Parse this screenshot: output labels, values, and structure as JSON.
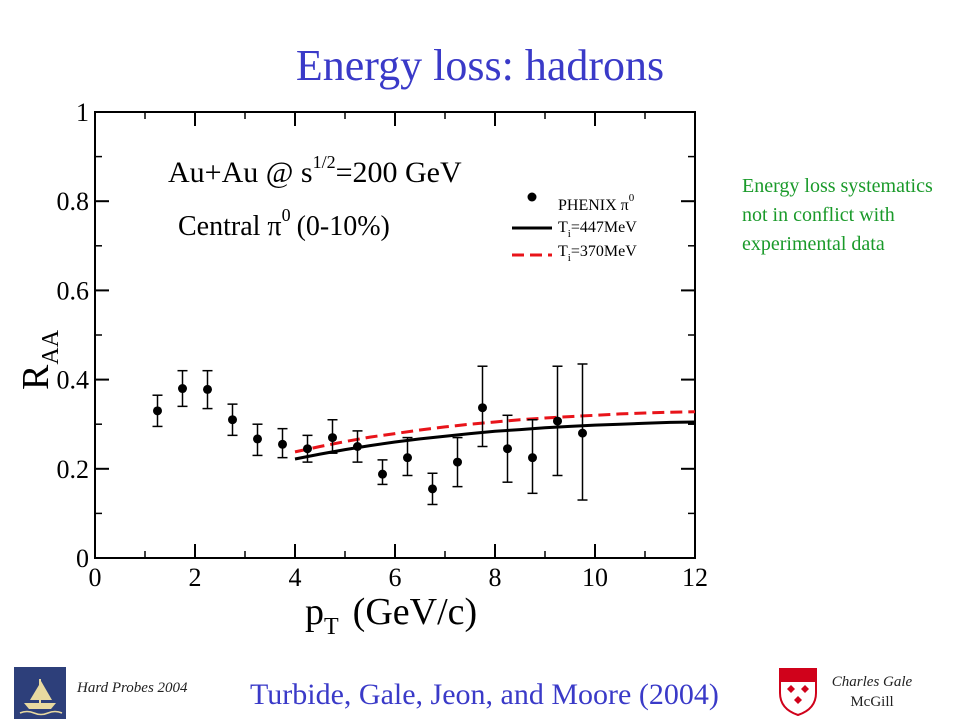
{
  "slide": {
    "title": "Energy loss: hadrons",
    "side_note": "Energy loss systematics not in conflict with experimental data",
    "footer_left": "Hard Probes 2004",
    "citation": "Turbide, Gale, Jeon, and Moore (2004)",
    "author": "Charles Gale",
    "institution": "McGill"
  },
  "colors": {
    "title": "#3a3ac8",
    "note": "#1a9a2a",
    "dashed_curve": "#e8141a",
    "solid_curve": "#000000",
    "points": "#000000"
  },
  "chart_data": {
    "type": "scatter",
    "xlabel_main": "p",
    "xlabel_sub": "T",
    "xlabel_rest": "(GeV/c)",
    "ylabel_main": "R",
    "ylabel_sub": "AA",
    "xlim": [
      0,
      12
    ],
    "ylim": [
      0,
      1
    ],
    "x_ticks": [
      "0",
      "2",
      "4",
      "6",
      "8",
      "10",
      "12"
    ],
    "y_ticks": [
      "0",
      "0.2",
      "0.4",
      "0.6",
      "0.8",
      "1"
    ],
    "annotation_line1_a": "Au+Au @  s",
    "annotation_line1_sup": "1/2",
    "annotation_line1_b": "=200 GeV",
    "annotation_line2_a": "Central  π",
    "annotation_line2_sup": "0",
    "annotation_line2_b": "(0-10%)",
    "legend_placement": "top-right",
    "legend": [
      {
        "label_main": "PHENIX π",
        "label_sup": "0",
        "label_sub": "",
        "label_rest": "",
        "style": "points"
      },
      {
        "label_main": "T",
        "label_sup": "",
        "label_sub": "i",
        "label_rest": "=447MeV",
        "style": "solid"
      },
      {
        "label_main": "T",
        "label_sup": "",
        "label_sub": "i",
        "label_rest": "=370MeV",
        "style": "dashed"
      }
    ],
    "series": [
      {
        "name": "PHENIX π0",
        "style": "points",
        "x": [
          1.25,
          1.75,
          2.25,
          2.75,
          3.25,
          3.75,
          4.25,
          4.75,
          5.25,
          5.75,
          6.25,
          6.75,
          7.25,
          7.75,
          8.25,
          8.75,
          9.25,
          9.75
        ],
        "y": [
          0.33,
          0.38,
          0.378,
          0.31,
          0.267,
          0.255,
          0.245,
          0.27,
          0.25,
          0.188,
          0.225,
          0.155,
          0.215,
          0.337,
          0.245,
          0.225,
          0.307,
          0.28
        ],
        "err_low": [
          0.295,
          0.34,
          0.335,
          0.275,
          0.23,
          0.225,
          0.215,
          0.235,
          0.215,
          0.165,
          0.185,
          0.12,
          0.16,
          0.25,
          0.17,
          0.145,
          0.185,
          0.13
        ],
        "err_high": [
          0.365,
          0.42,
          0.42,
          0.345,
          0.3,
          0.29,
          0.275,
          0.31,
          0.285,
          0.22,
          0.27,
          0.19,
          0.27,
          0.43,
          0.32,
          0.31,
          0.43,
          0.435
        ]
      },
      {
        "name": "Ti=447MeV",
        "style": "solid",
        "x": [
          4.0,
          4.5,
          5.0,
          5.5,
          6.0,
          6.5,
          7.0,
          7.5,
          8.0,
          8.5,
          9.0,
          9.5,
          10.0,
          10.5,
          11.0,
          11.5,
          12.0
        ],
        "y": [
          0.222,
          0.233,
          0.243,
          0.252,
          0.26,
          0.267,
          0.273,
          0.279,
          0.284,
          0.288,
          0.292,
          0.295,
          0.298,
          0.3,
          0.302,
          0.304,
          0.305
        ]
      },
      {
        "name": "Ti=370MeV",
        "style": "dashed",
        "x": [
          4.0,
          4.5,
          5.0,
          5.5,
          6.0,
          6.5,
          7.0,
          7.5,
          8.0,
          8.5,
          9.0,
          9.5,
          10.0,
          10.5,
          11.0,
          11.5,
          12.0
        ],
        "y": [
          0.238,
          0.25,
          0.261,
          0.271,
          0.279,
          0.287,
          0.294,
          0.3,
          0.305,
          0.31,
          0.314,
          0.317,
          0.32,
          0.323,
          0.325,
          0.327,
          0.328
        ]
      }
    ]
  }
}
